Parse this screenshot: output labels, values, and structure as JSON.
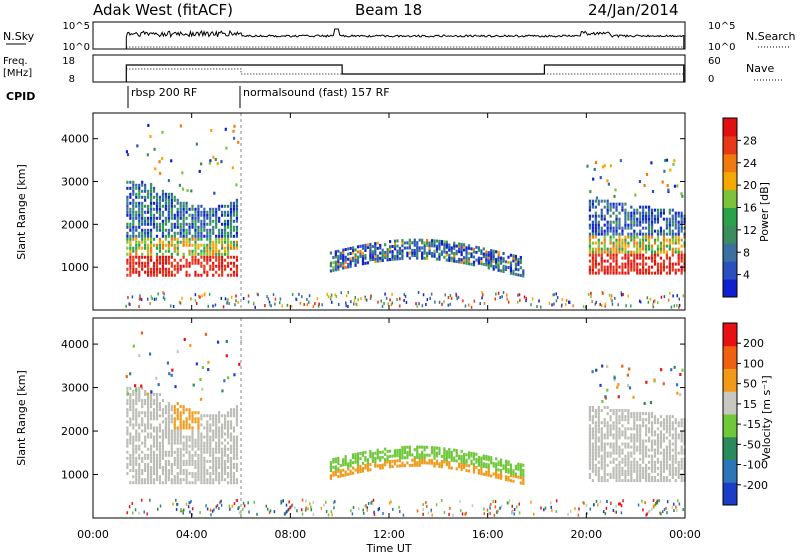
{
  "header": {
    "station": "Adak West (fitACF)",
    "beam": "Beam 18",
    "date": "24/Jan/2014"
  },
  "chart_data": [
    {
      "name": "nsky-nsearch-panel",
      "type": "line",
      "left_label": "N.Sky",
      "right_label": "N.Search",
      "left_ticks": [
        "10^5",
        "10^0"
      ],
      "right_ticks": [
        "10^5",
        "10^0"
      ]
    },
    {
      "name": "freq-nave-panel",
      "type": "line",
      "left_label_lines": [
        "Freq.",
        "[MHz]"
      ],
      "right_label": "Nave",
      "left_ticks": [
        "18",
        "8"
      ],
      "right_ticks": [
        "60",
        "0"
      ]
    },
    {
      "name": "cpid-panel",
      "type": "table",
      "label": "CPID",
      "segments": [
        {
          "start_hour": 1.33,
          "end_hour": 6.0,
          "text": "rbsp 200 RF"
        },
        {
          "start_hour": 6.0,
          "end_hour": 24.0,
          "text": "normalsound (fast) 157 RF"
        }
      ]
    },
    {
      "name": "power-panel",
      "type": "heatmap",
      "ylabel": "Slant Range [km]",
      "yticks": [
        1000,
        2000,
        3000,
        4000
      ],
      "ylim": [
        0,
        4600
      ],
      "colorbar_label": "Power [dB]",
      "colorbar_ticks": [
        "4",
        "8",
        "12",
        "16",
        "20",
        "24",
        "28"
      ],
      "colorbar_colors": [
        "#1020d0",
        "#2a50c0",
        "#3a6fa0",
        "#3b8c5e",
        "#2aa24a",
        "#7cc23a",
        "#f5a800",
        "#f07a10",
        "#e83818",
        "#e01010"
      ]
    },
    {
      "name": "velocity-panel",
      "type": "heatmap",
      "ylabel": "Slant Range [km]",
      "yticks": [
        1000,
        2000,
        3000,
        4000
      ],
      "ylim": [
        0,
        4600
      ],
      "colorbar_label": "Velocity [m s⁻¹]",
      "colorbar_ticks": [
        "200",
        "100",
        "50",
        "15",
        "-15",
        "-50",
        "-100",
        "-200"
      ],
      "colorbar_colors": [
        "#1a3cc8",
        "#2e74b8",
        "#2b8a5c",
        "#6ec83a",
        "#c8c8c0",
        "#f09a18",
        "#f06010",
        "#e81010"
      ],
      "ground_scatter_color": "#bcbcb6"
    }
  ],
  "xaxis": {
    "label": "Time UT",
    "ticks": [
      "00:00",
      "04:00",
      "08:00",
      "12:00",
      "16:00",
      "20:00",
      "00:00"
    ],
    "range_hours": [
      0,
      24
    ]
  }
}
